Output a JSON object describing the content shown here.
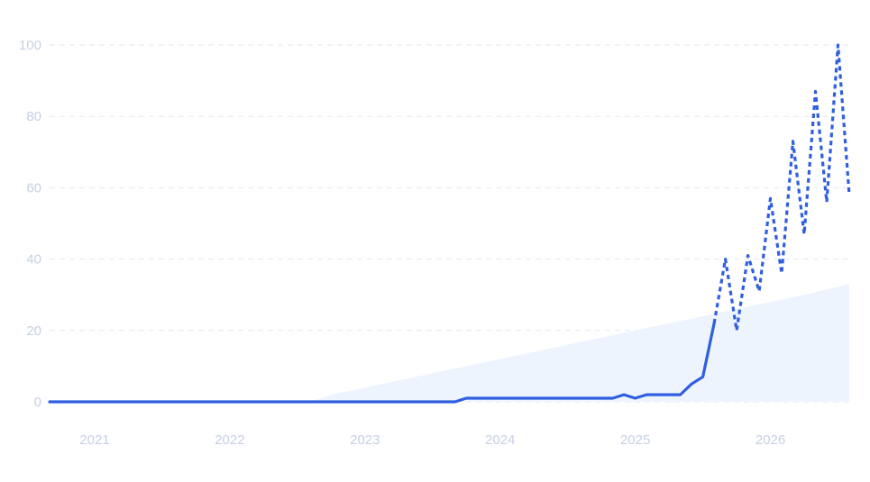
{
  "chart_data": {
    "type": "line",
    "title": "",
    "xlabel": "",
    "ylabel": "",
    "ylim": [
      0,
      100
    ],
    "yticks": [
      "0",
      "20",
      "40",
      "60",
      "80",
      "100"
    ],
    "xticks": [
      "2021",
      "2022",
      "2023",
      "2024",
      "2025",
      "2026"
    ],
    "grid": true,
    "legend": "none",
    "colors": {
      "line": "#2f5fdf",
      "area": "#eef4fd",
      "grid": "#e2e7f0",
      "ticks": "#c5d0e3"
    },
    "x_range": [
      "2020-09",
      "2026-08"
    ],
    "series": [
      {
        "style": "solid",
        "x": [
          "2020-09",
          "2021-03",
          "2021-09",
          "2022-03",
          "2022-09",
          "2023-03",
          "2023-09",
          "2023-10",
          "2024-01",
          "2024-06",
          "2024-10",
          "2024-11",
          "2024-12",
          "2025-01",
          "2025-02",
          "2025-03",
          "2025-04",
          "2025-05",
          "2025-06",
          "2025-07",
          "2025-08"
        ],
        "values": [
          0,
          0,
          0,
          0,
          0,
          0,
          0,
          1,
          1,
          1,
          1,
          1,
          2,
          1,
          2,
          2,
          2,
          2,
          5,
          7,
          22
        ]
      },
      {
        "style": "dashed",
        "x": [
          "2025-08",
          "2025-09",
          "2025-10",
          "2025-11",
          "2025-12",
          "2026-01",
          "2026-02",
          "2026-03",
          "2026-04",
          "2026-05",
          "2026-06",
          "2026-07",
          "2026-08"
        ],
        "values": [
          22,
          40,
          20,
          41,
          31,
          57,
          36,
          73,
          47,
          87,
          56,
          100,
          58
        ]
      },
      {
        "style": "area",
        "x": [
          "2020-09",
          "2022-08",
          "2022-10",
          "2023-01",
          "2023-04",
          "2023-07",
          "2023-10",
          "2024-01",
          "2024-04",
          "2024-07",
          "2024-10",
          "2025-01",
          "2025-04",
          "2025-07",
          "2025-10",
          "2026-01",
          "2026-04",
          "2026-08"
        ],
        "values": [
          0,
          0,
          2,
          4,
          6,
          8,
          10,
          12,
          14,
          16,
          18,
          20,
          22,
          24,
          26,
          28,
          30,
          33
        ]
      }
    ]
  }
}
